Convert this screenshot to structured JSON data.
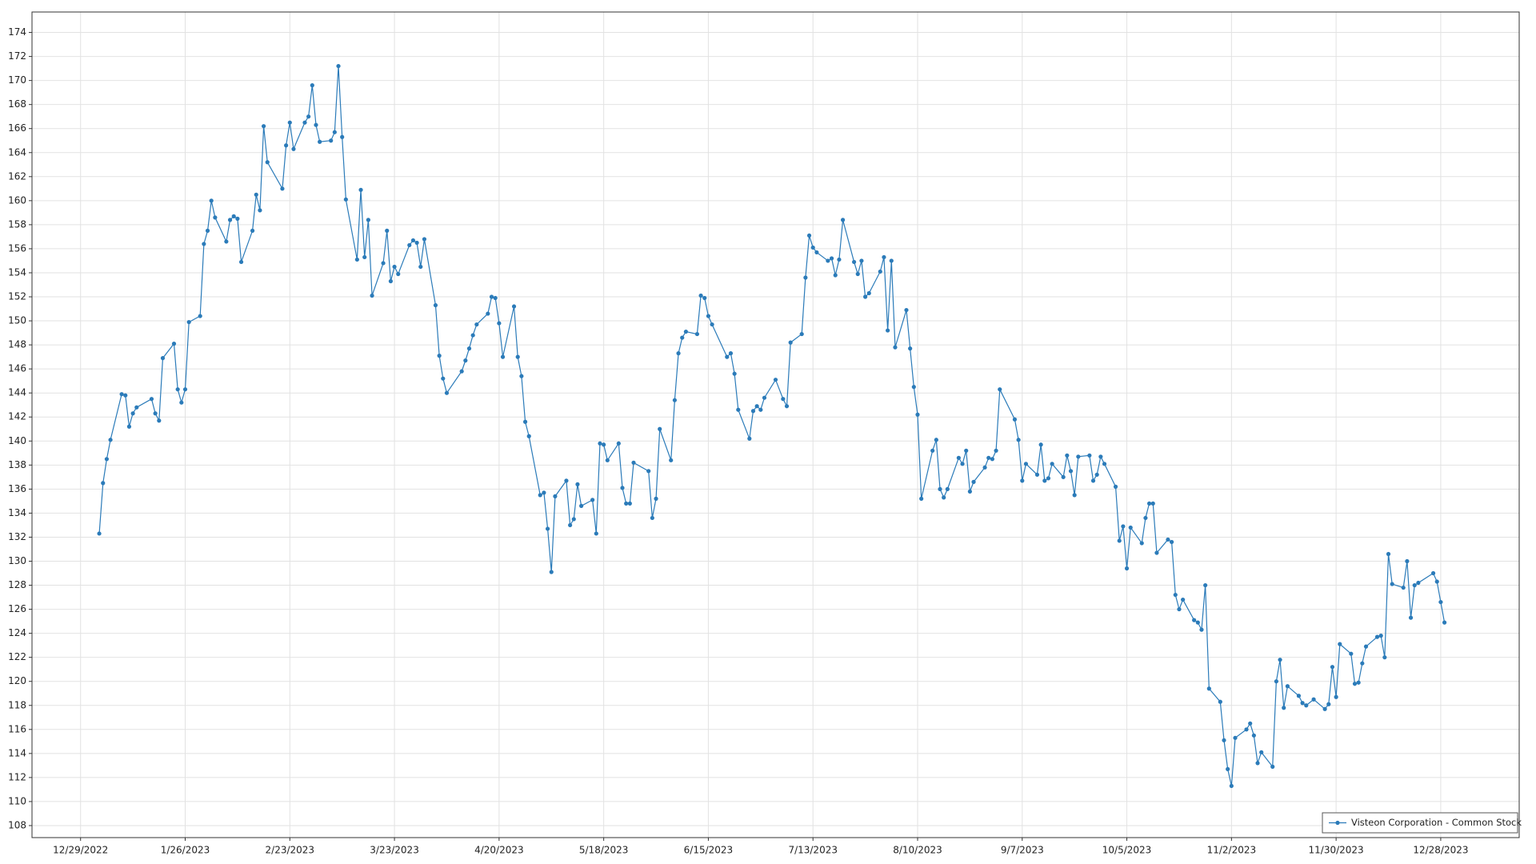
{
  "chart_data": {
    "type": "line",
    "x": [
      "1/3/2023",
      "1/4/2023",
      "1/5/2023",
      "1/6/2023",
      "1/9/2023",
      "1/10/2023",
      "1/11/2023",
      "1/12/2023",
      "1/13/2023",
      "1/17/2023",
      "1/18/2023",
      "1/19/2023",
      "1/20/2023",
      "1/23/2023",
      "1/24/2023",
      "1/25/2023",
      "1/26/2023",
      "1/27/2023",
      "1/30/2023",
      "1/31/2023",
      "2/1/2023",
      "2/2/2023",
      "2/3/2023",
      "2/6/2023",
      "2/7/2023",
      "2/8/2023",
      "2/9/2023",
      "2/10/2023",
      "2/13/2023",
      "2/14/2023",
      "2/15/2023",
      "2/16/2023",
      "2/17/2023",
      "2/21/2023",
      "2/22/2023",
      "2/23/2023",
      "2/24/2023",
      "2/27/2023",
      "2/28/2023",
      "3/1/2023",
      "3/2/2023",
      "3/3/2023",
      "3/6/2023",
      "3/7/2023",
      "3/8/2023",
      "3/9/2023",
      "3/10/2023",
      "3/13/2023",
      "3/14/2023",
      "3/15/2023",
      "3/16/2023",
      "3/17/2023",
      "3/20/2023",
      "3/21/2023",
      "3/22/2023",
      "3/23/2023",
      "3/24/2023",
      "3/27/2023",
      "3/28/2023",
      "3/29/2023",
      "3/30/2023",
      "3/31/2023",
      "4/3/2023",
      "4/4/2023",
      "4/5/2023",
      "4/6/2023",
      "4/10/2023",
      "4/11/2023",
      "4/12/2023",
      "4/13/2023",
      "4/14/2023",
      "4/17/2023",
      "4/18/2023",
      "4/19/2023",
      "4/20/2023",
      "4/21/2023",
      "4/24/2023",
      "4/25/2023",
      "4/26/2023",
      "4/27/2023",
      "4/28/2023",
      "5/1/2023",
      "5/2/2023",
      "5/3/2023",
      "5/4/2023",
      "5/5/2023",
      "5/8/2023",
      "5/9/2023",
      "5/10/2023",
      "5/11/2023",
      "5/12/2023",
      "5/15/2023",
      "5/16/2023",
      "5/17/2023",
      "5/18/2023",
      "5/19/2023",
      "5/22/2023",
      "5/23/2023",
      "5/24/2023",
      "5/25/2023",
      "5/26/2023",
      "5/30/2023",
      "5/31/2023",
      "6/1/2023",
      "6/2/2023",
      "6/5/2023",
      "6/6/2023",
      "6/7/2023",
      "6/8/2023",
      "6/9/2023",
      "6/12/2023",
      "6/13/2023",
      "6/14/2023",
      "6/15/2023",
      "6/16/2023",
      "6/20/2023",
      "6/21/2023",
      "6/22/2023",
      "6/23/2023",
      "6/26/2023",
      "6/27/2023",
      "6/28/2023",
      "6/29/2023",
      "6/30/2023",
      "7/3/2023",
      "7/5/2023",
      "7/6/2023",
      "7/7/2023",
      "7/10/2023",
      "7/11/2023",
      "7/12/2023",
      "7/13/2023",
      "7/14/2023",
      "7/17/2023",
      "7/18/2023",
      "7/19/2023",
      "7/20/2023",
      "7/21/2023",
      "7/24/2023",
      "7/25/2023",
      "7/26/2023",
      "7/27/2023",
      "7/28/2023",
      "7/31/2023",
      "8/1/2023",
      "8/2/2023",
      "8/3/2023",
      "8/4/2023",
      "8/7/2023",
      "8/8/2023",
      "8/9/2023",
      "8/10/2023",
      "8/11/2023",
      "8/14/2023",
      "8/15/2023",
      "8/16/2023",
      "8/17/2023",
      "8/18/2023",
      "8/21/2023",
      "8/22/2023",
      "8/23/2023",
      "8/24/2023",
      "8/25/2023",
      "8/28/2023",
      "8/29/2023",
      "8/30/2023",
      "8/31/2023",
      "9/1/2023",
      "9/5/2023",
      "9/6/2023",
      "9/7/2023",
      "9/8/2023",
      "9/11/2023",
      "9/12/2023",
      "9/13/2023",
      "9/14/2023",
      "9/15/2023",
      "9/18/2023",
      "9/19/2023",
      "9/20/2023",
      "9/21/2023",
      "9/22/2023",
      "9/25/2023",
      "9/26/2023",
      "9/27/2023",
      "9/28/2023",
      "9/29/2023",
      "10/2/2023",
      "10/3/2023",
      "10/4/2023",
      "10/5/2023",
      "10/6/2023",
      "10/9/2023",
      "10/10/2023",
      "10/11/2023",
      "10/12/2023",
      "10/13/2023",
      "10/16/2023",
      "10/17/2023",
      "10/18/2023",
      "10/19/2023",
      "10/20/2023",
      "10/23/2023",
      "10/24/2023",
      "10/25/2023",
      "10/26/2023",
      "10/27/2023",
      "10/30/2023",
      "10/31/2023",
      "11/1/2023",
      "11/2/2023",
      "11/3/2023",
      "11/6/2023",
      "11/7/2023",
      "11/8/2023",
      "11/9/2023",
      "11/10/2023",
      "11/13/2023",
      "11/14/2023",
      "11/15/2023",
      "11/16/2023",
      "11/17/2023",
      "11/20/2023",
      "11/21/2023",
      "11/22/2023",
      "11/24/2023",
      "11/27/2023",
      "11/28/2023",
      "11/29/2023",
      "11/30/2023",
      "12/1/2023",
      "12/4/2023",
      "12/5/2023",
      "12/6/2023",
      "12/7/2023",
      "12/8/2023",
      "12/11/2023",
      "12/12/2023",
      "12/13/2023",
      "12/14/2023",
      "12/15/2023",
      "12/18/2023",
      "12/19/2023",
      "12/20/2023",
      "12/21/2023",
      "12/22/2023",
      "12/26/2023",
      "12/27/2023",
      "12/28/2023",
      "12/29/2023"
    ],
    "series": [
      {
        "name": "Visteon Corporation - Common Stock",
        "color": "#2b7bb9",
        "values": [
          132.3,
          136.5,
          138.5,
          140.1,
          143.9,
          143.8,
          141.2,
          142.3,
          142.8,
          143.5,
          142.3,
          141.7,
          146.9,
          148.1,
          144.3,
          143.2,
          144.3,
          149.9,
          150.4,
          156.4,
          157.5,
          160.0,
          158.6,
          156.6,
          158.4,
          158.7,
          158.5,
          154.9,
          157.5,
          160.5,
          159.2,
          166.2,
          163.2,
          161.0,
          164.6,
          166.5,
          164.3,
          166.5,
          167.0,
          169.6,
          166.3,
          164.9,
          165.0,
          165.7,
          171.2,
          165.3,
          160.1,
          155.1,
          160.9,
          155.3,
          158.4,
          152.1,
          154.8,
          157.5,
          153.3,
          154.5,
          153.9,
          156.3,
          156.7,
          156.5,
          154.5,
          156.8,
          151.3,
          147.1,
          145.2,
          144.0,
          145.8,
          146.7,
          147.7,
          148.8,
          149.7,
          150.6,
          152.0,
          151.9,
          149.8,
          147.0,
          151.2,
          147.0,
          145.4,
          141.6,
          140.4,
          135.5,
          135.7,
          132.7,
          129.1,
          135.4,
          136.7,
          133.0,
          133.5,
          136.4,
          134.6,
          135.1,
          132.3,
          139.8,
          139.7,
          138.4,
          139.8,
          136.1,
          134.8,
          134.8,
          138.2,
          137.5,
          133.6,
          135.2,
          141.0,
          138.4,
          143.4,
          147.3,
          148.6,
          149.1,
          148.9,
          152.1,
          151.9,
          150.4,
          149.7,
          147.0,
          147.3,
          145.6,
          142.6,
          140.2,
          142.5,
          142.9,
          142.6,
          143.6,
          145.1,
          143.5,
          142.9,
          148.2,
          148.9,
          153.6,
          157.1,
          156.1,
          155.7,
          155.0,
          155.2,
          153.8,
          155.1,
          158.4,
          154.9,
          153.9,
          155.0,
          152.0,
          152.3,
          154.1,
          155.3,
          149.2,
          155.0,
          147.8,
          150.9,
          147.7,
          144.5,
          142.2,
          135.2,
          139.2,
          140.1,
          136.0,
          135.3,
          136.0,
          138.6,
          138.1,
          139.2,
          135.8,
          136.6,
          137.8,
          138.6,
          138.5,
          139.2,
          144.3,
          141.8,
          140.1,
          136.7,
          138.1,
          137.2,
          139.7,
          136.7,
          136.9,
          138.1,
          137.0,
          138.8,
          137.5,
          135.5,
          138.7,
          138.8,
          136.7,
          137.2,
          138.7,
          138.1,
          136.2,
          131.7,
          132.9,
          129.4,
          132.8,
          131.5,
          133.6,
          134.8,
          134.8,
          130.7,
          131.8,
          131.6,
          127.2,
          126.0,
          126.8,
          125.1,
          124.9,
          124.3,
          128.0,
          119.4,
          118.3,
          115.1,
          112.7,
          111.3,
          115.3,
          116.0,
          116.5,
          115.5,
          113.2,
          114.1,
          112.9,
          120.0,
          121.8,
          117.8,
          119.6,
          118.8,
          118.2,
          118.0,
          118.5,
          117.7,
          118.1,
          121.2,
          118.7,
          123.1,
          122.3,
          119.8,
          119.9,
          121.5,
          122.9,
          123.7,
          123.8,
          122.0,
          130.6,
          128.1,
          127.8,
          130.0,
          125.3,
          128.0,
          128.2,
          129.0,
          128.3,
          126.6,
          124.9
        ]
      }
    ],
    "xlim": [
      "12/16/2022",
      "1/18/2024"
    ],
    "xticks": [
      "12/29/2022",
      "1/26/2023",
      "2/23/2023",
      "3/23/2023",
      "4/20/2023",
      "5/18/2023",
      "6/15/2023",
      "7/13/2023",
      "8/10/2023",
      "9/7/2023",
      "10/5/2023",
      "11/2/2023",
      "11/30/2023",
      "12/28/2023"
    ],
    "ylim": [
      107,
      175.7
    ],
    "yticks": [
      108,
      110,
      112,
      114,
      116,
      118,
      120,
      122,
      124,
      126,
      128,
      130,
      132,
      134,
      136,
      138,
      140,
      142,
      144,
      146,
      148,
      150,
      152,
      154,
      156,
      158,
      160,
      162,
      164,
      166,
      168,
      170,
      172,
      174
    ],
    "grid": true,
    "legend": "lower right"
  }
}
